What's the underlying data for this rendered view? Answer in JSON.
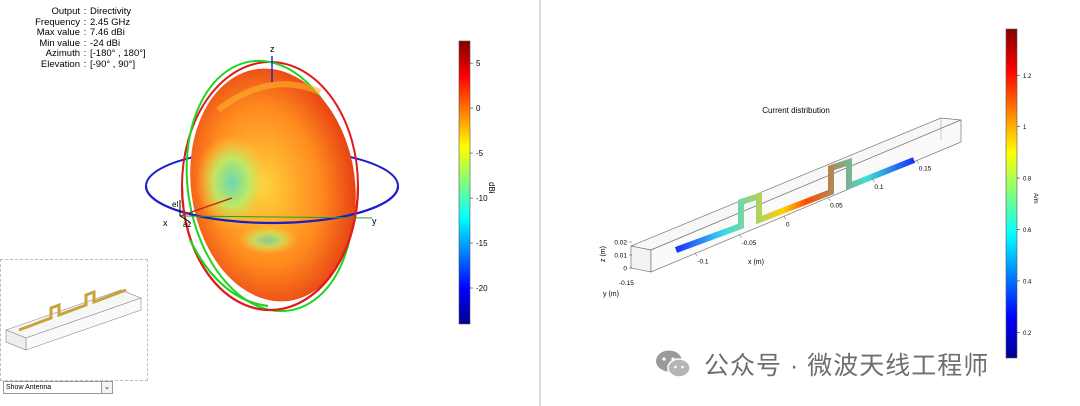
{
  "info": [
    {
      "label": "Output",
      "value": "Directivity"
    },
    {
      "label": "Frequency",
      "value": "2.45 GHz"
    },
    {
      "label": "Max value",
      "value": "7.46 dBi"
    },
    {
      "label": "Min value",
      "value": "-24 dBi"
    },
    {
      "label": "Azimuth",
      "value": "[-180° , 180°]"
    },
    {
      "label": "Elevation",
      "value": "[-90° , 90°]"
    }
  ],
  "control": {
    "dropdown_value": "Show Antenna"
  },
  "watermark": "公众号 · 微波天线工程师",
  "chart_data": [
    {
      "type": "3d-radiation-pattern",
      "output": "Directivity",
      "axis_labels": {
        "x": "x",
        "y": "y",
        "z": "z",
        "az": "az",
        "el": "el"
      },
      "colorbar": {
        "label": "dBi",
        "range": [
          -24,
          7.46
        ],
        "ticks": [
          5,
          0,
          -5,
          -10,
          -15,
          -20
        ],
        "colormap": "jet"
      }
    },
    {
      "type": "3d-current-distribution",
      "title": "Current distribution",
      "xlabel": "x (m)",
      "ylabel": "y (m)",
      "zlabel": "z (m)",
      "x_ticks": [
        -0.1,
        -0.05,
        0,
        0.05,
        0.1,
        0.15
      ],
      "y_ticks": [
        -0.15
      ],
      "z_ticks": [
        0,
        0.01,
        0.02
      ],
      "colorbar": {
        "label": "A/m",
        "range": [
          0.1,
          1.38
        ],
        "ticks": [
          1.2,
          1,
          0.8,
          0.6,
          0.4,
          0.2
        ],
        "colormap": "jet"
      }
    }
  ]
}
